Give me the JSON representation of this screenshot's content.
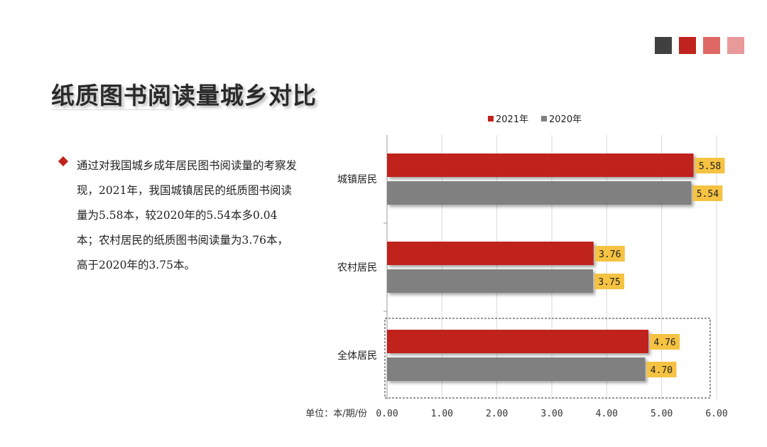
{
  "swatch_colors": [
    "#404040",
    "#c0231d",
    "#e06864",
    "#e89a9a"
  ],
  "title": "纸质图书阅读量城乡对比",
  "description": "通过对我国城乡成年居民图书阅读量的考察发现，2021年，我国城镇居民的纸质图书阅读量为5.58本，较2020年的5.54本多0.04本；农村居民的纸质图书阅读量为3.76本，高于2020年的3.75本。",
  "chart_data": {
    "type": "bar",
    "orientation": "horizontal",
    "categories": [
      "城镇居民",
      "农村居民",
      "全体居民"
    ],
    "series": [
      {
        "name": "2021年",
        "color": "#c0231d",
        "values": [
          5.58,
          3.76,
          4.76
        ]
      },
      {
        "name": "2020年",
        "color": "#808080",
        "values": [
          5.54,
          3.75,
          4.7
        ]
      }
    ],
    "data_labels": [
      [
        "5.58",
        "3.76",
        "4.76"
      ],
      [
        "5.54",
        "3.75",
        "4.70"
      ]
    ],
    "xlim": [
      0,
      6
    ],
    "ticks": [
      "0.00",
      "1.00",
      "2.00",
      "3.00",
      "4.00",
      "5.00",
      "6.00"
    ],
    "unit_label": "单位：本/期/份",
    "legend_position": "top",
    "grid": true,
    "highlighted_category": "全体居民",
    "label_box_color": "#f5c242"
  }
}
